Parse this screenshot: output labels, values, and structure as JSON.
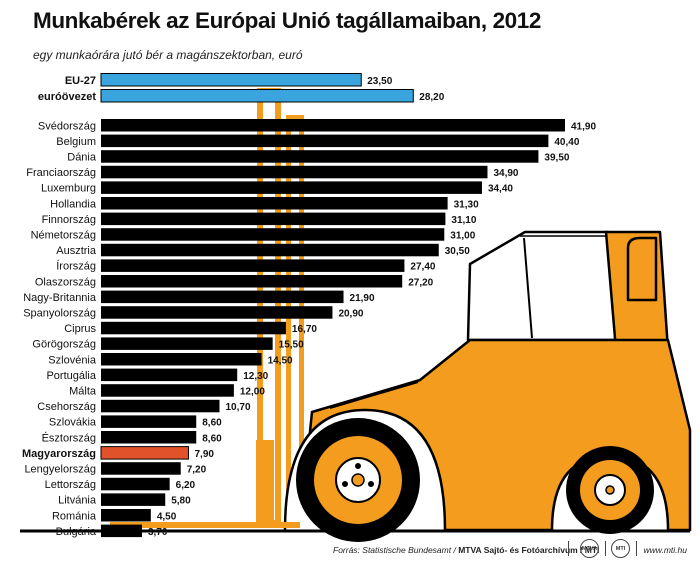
{
  "header": {
    "title": "Munkabérek az Európai Unió tagállamaiban, 2012",
    "subtitle": "egy munkaórára jutó bér a magánszektorban, euró"
  },
  "colors": {
    "reference_bar": "#3aa4de",
    "country_bar": "#000000",
    "highlight_bar": "#e2522a",
    "forklift_orange": "#f49c1d"
  },
  "chart_data": {
    "type": "bar",
    "orientation": "horizontal",
    "title": "Munkabérek az Európai Unió tagállamaiban, 2012",
    "subtitle": "egy munkaórára jutó bér a magánszektorban, euró",
    "xlim": [
      0,
      42
    ],
    "grid": false,
    "reference_rows": [
      {
        "label": "EU-27",
        "value": 23.5,
        "display": "23,50",
        "bold": true,
        "color": "#3aa4de"
      },
      {
        "label": "euróövezet",
        "value": 28.2,
        "display": "28,20",
        "bold": true,
        "color": "#3aa4de"
      }
    ],
    "rows": [
      {
        "label": "Svédország",
        "value": 41.9,
        "display": "41,90"
      },
      {
        "label": "Belgium",
        "value": 40.4,
        "display": "40,40"
      },
      {
        "label": "Dánia",
        "value": 39.5,
        "display": "39,50"
      },
      {
        "label": "Franciaország",
        "value": 34.9,
        "display": "34,90"
      },
      {
        "label": "Luxemburg",
        "value": 34.4,
        "display": "34,40"
      },
      {
        "label": "Hollandia",
        "value": 31.3,
        "display": "31,30"
      },
      {
        "label": "Finnország",
        "value": 31.1,
        "display": "31,10"
      },
      {
        "label": "Németország",
        "value": 31.0,
        "display": "31,00"
      },
      {
        "label": "Ausztria",
        "value": 30.5,
        "display": "30,50"
      },
      {
        "label": "Írország",
        "value": 27.4,
        "display": "27,40"
      },
      {
        "label": "Olaszország",
        "value": 27.2,
        "display": "27,20"
      },
      {
        "label": "Nagy-Britannia",
        "value": 21.9,
        "display": "21,90"
      },
      {
        "label": "Spanyolország",
        "value": 20.9,
        "display": "20,90"
      },
      {
        "label": "Ciprus",
        "value": 16.7,
        "display": "16,70"
      },
      {
        "label": "Görögország",
        "value": 15.5,
        "display": "15,50"
      },
      {
        "label": "Szlovénia",
        "value": 14.5,
        "display": "14,50"
      },
      {
        "label": "Portugália",
        "value": 12.3,
        "display": "12,30"
      },
      {
        "label": "Málta",
        "value": 12.0,
        "display": "12,00"
      },
      {
        "label": "Csehország",
        "value": 10.7,
        "display": "10,70"
      },
      {
        "label": "Szlovákia",
        "value": 8.6,
        "display": "8,60"
      },
      {
        "label": "Észtország",
        "value": 8.6,
        "display": "8,60"
      },
      {
        "label": "Magyarország",
        "value": 7.9,
        "display": "7,90",
        "bold": true,
        "color": "#e2522a"
      },
      {
        "label": "Lengyelország",
        "value": 7.2,
        "display": "7,20"
      },
      {
        "label": "Lettország",
        "value": 6.2,
        "display": "6,20"
      },
      {
        "label": "Litvánia",
        "value": 5.8,
        "display": "5,80"
      },
      {
        "label": "Románia",
        "value": 4.5,
        "display": "4,50"
      },
      {
        "label": "Bulgária",
        "value": 3.7,
        "display": "3,70"
      }
    ]
  },
  "footer": {
    "source_prefix": "Forrás: Statistische Bundesamt / ",
    "source_agency": "MTVA Sajtó- és Fotóarchívum / MTI",
    "logo_mtva": "MTVA",
    "logo_mti": "MTI",
    "website": "www.mti.hu"
  }
}
